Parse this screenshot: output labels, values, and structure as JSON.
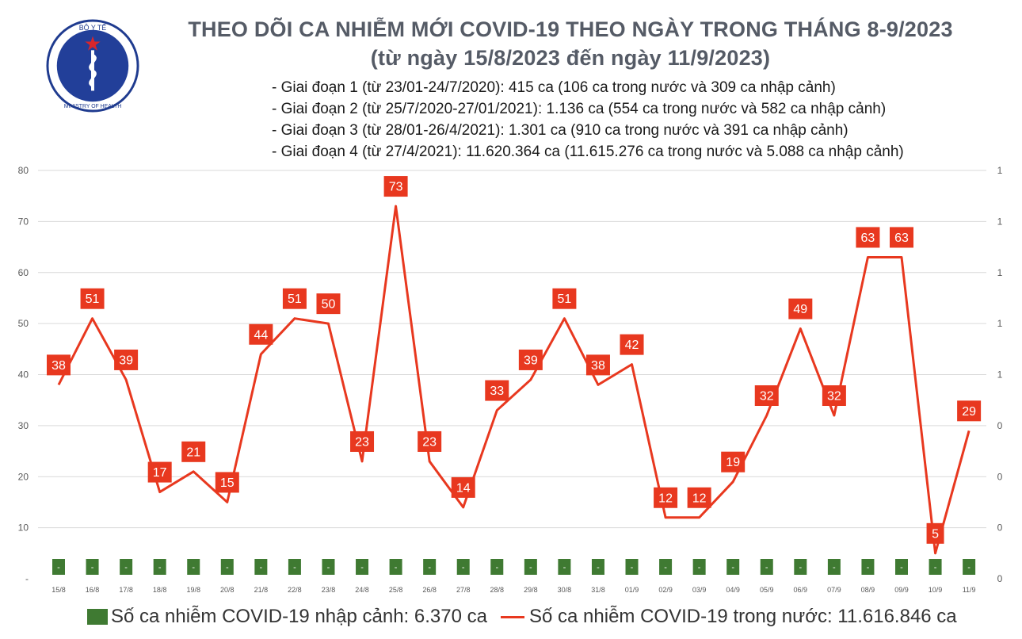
{
  "logo": {
    "top_text": "BỘ Y TẾ",
    "bottom_text": "MINISTRY OF HEALTH",
    "icon": "caduceus-icon"
  },
  "header": {
    "title": "THEO DÕI CA NHIỄM MỚI COVID-19 THEO NGÀY TRONG THÁNG 8-9/2023",
    "subtitle": "(từ ngày 15/8/2023 đến ngày 11/9/2023)"
  },
  "phases": [
    "- Giai đoạn 1 (từ 23/01-24/7/2020): 415 ca (106 ca trong nước và 309 ca nhập cảnh)",
    "- Giai đoạn 2 (từ 25/7/2020-27/01/2021): 1.136 ca (554 ca trong nước và 582 ca nhập cảnh)",
    "- Giai đoạn 3 (từ 28/01-26/4/2021): 1.301 ca (910 ca trong nước và 391 ca nhập cảnh)",
    "- Giai đoạn 4 (từ 27/4/2021): 11.620.364 ca (11.615.276 ca trong nước và 5.088 ca nhập cảnh)"
  ],
  "colors": {
    "domestic": "#e8381f",
    "imported": "#3f7a32",
    "grid": "#d9d9d9",
    "axis_text": "#595959"
  },
  "chart_data": {
    "type": "line",
    "categories": [
      "15/8",
      "16/8",
      "17/8",
      "18/8",
      "19/8",
      "20/8",
      "21/8",
      "22/8",
      "23/8",
      "24/8",
      "25/8",
      "26/8",
      "27/8",
      "28/8",
      "29/8",
      "30/8",
      "31/8",
      "01/9",
      "02/9",
      "03/9",
      "04/9",
      "05/9",
      "06/9",
      "07/9",
      "08/9",
      "09/9",
      "10/9",
      "11/9"
    ],
    "series": [
      {
        "name": "Số ca nhiễm COVID-19 trong nước: 11.616.846 ca",
        "kind": "line",
        "values": [
          38,
          51,
          39,
          17,
          21,
          15,
          44,
          51,
          50,
          23,
          73,
          23,
          14,
          33,
          39,
          51,
          38,
          42,
          12,
          12,
          19,
          32,
          49,
          32,
          63,
          63,
          5,
          29
        ]
      },
      {
        "name": "Số ca nhiễm COVID-19 nhập cảnh: 6.370 ca",
        "kind": "bar",
        "values": [
          0,
          0,
          0,
          0,
          0,
          0,
          0,
          0,
          0,
          0,
          0,
          0,
          0,
          0,
          0,
          0,
          0,
          0,
          0,
          0,
          0,
          0,
          0,
          0,
          0,
          0,
          0,
          0
        ],
        "labels": [
          "-",
          "-",
          "-",
          "-",
          "-",
          "-",
          "-",
          "-",
          "-",
          "-",
          "-",
          "-",
          "-",
          "-",
          "-",
          "-",
          "-",
          "-",
          "-",
          "-",
          "-",
          "-",
          "-",
          "-",
          "-",
          "-",
          "-",
          "-"
        ]
      }
    ],
    "ylim": [
      0,
      80
    ],
    "y_ticks": [
      "-",
      "10",
      "20",
      "30",
      "40",
      "50",
      "60",
      "70",
      "80"
    ],
    "y2_ticks": [
      "0",
      "0",
      "0",
      "0",
      "1",
      "1",
      "1",
      "1",
      "1"
    ],
    "grid": true,
    "legend_position": "bottom"
  }
}
